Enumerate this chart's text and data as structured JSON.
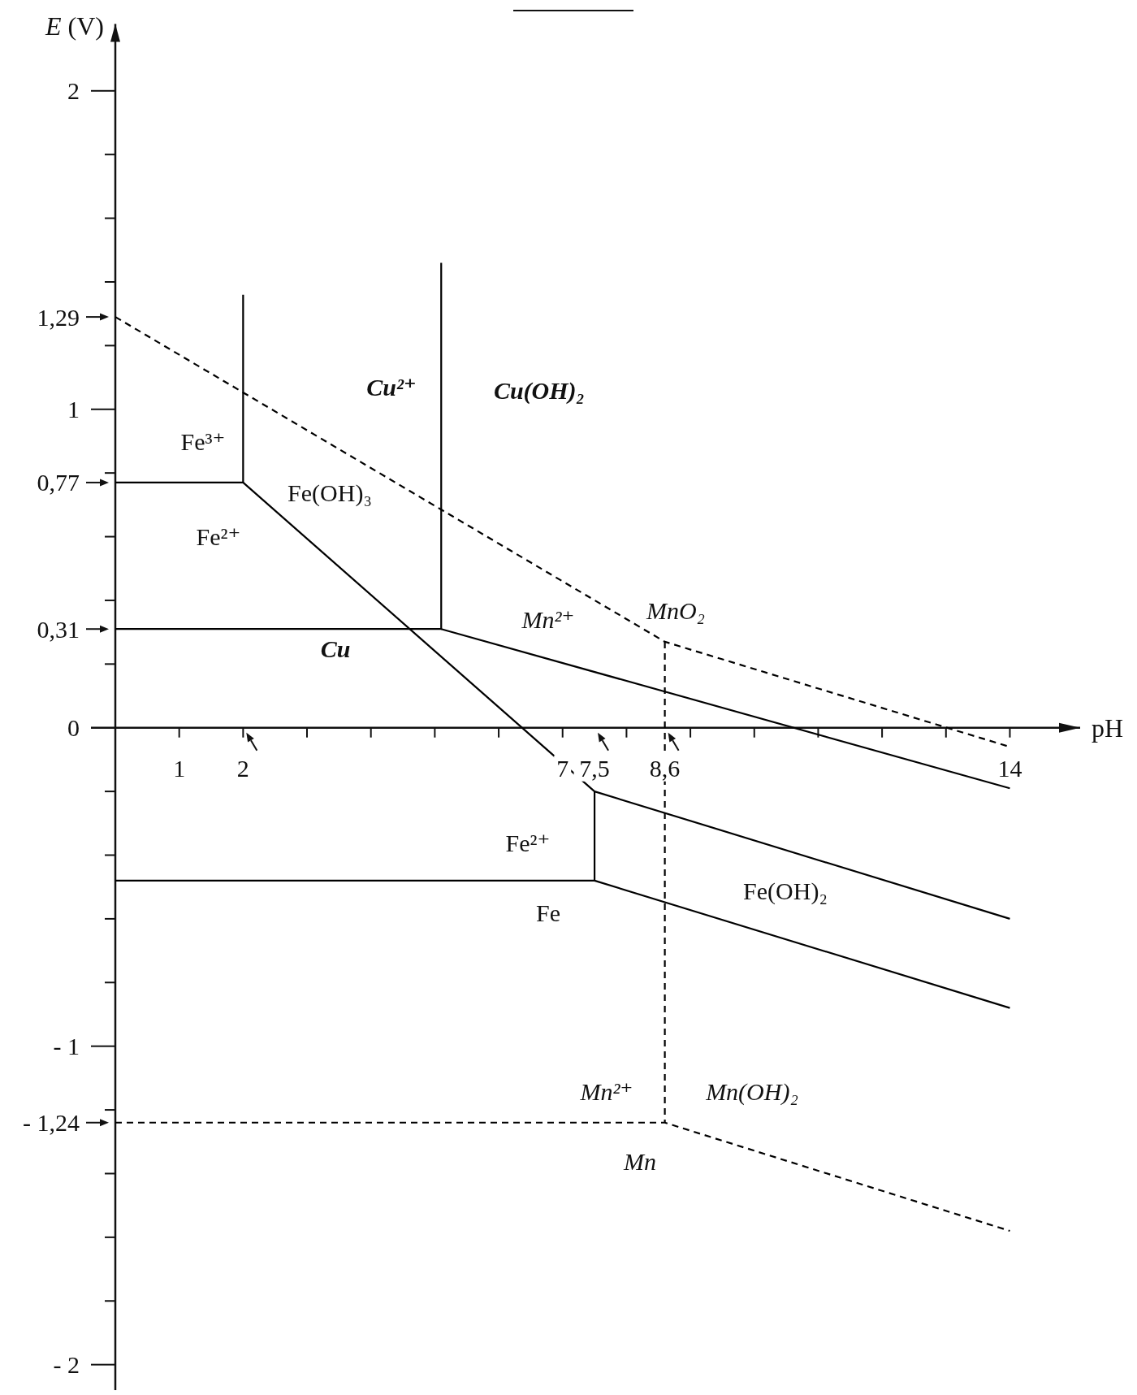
{
  "chart_data": {
    "type": "line",
    "xlabel": "pH",
    "ylabel": "E (V)",
    "line_style": "solid",
    "xlim": [
      0,
      15.1
    ],
    "ylim": [
      -2.08,
      2.21
    ],
    "xticks": [
      1,
      2,
      {
        "value": 3,
        "label": null
      },
      {
        "value": 4,
        "label": null
      },
      {
        "value": 5,
        "label": null
      },
      {
        "value": 6,
        "label": null
      },
      7,
      {
        "value": 7.5,
        "label": "7,5"
      },
      {
        "value": 8,
        "label": null
      },
      {
        "value": 8.6,
        "label": "8,6"
      },
      {
        "value": 9,
        "label": null
      },
      {
        "value": 10,
        "label": null
      },
      {
        "value": 11,
        "label": null
      },
      {
        "value": 12,
        "label": null
      },
      {
        "value": 13,
        "label": null
      },
      14
    ],
    "yticks": [
      {
        "value": -2,
        "label": "- 2"
      },
      {
        "value": -1.8,
        "label": null
      },
      {
        "value": -1.6,
        "label": null
      },
      {
        "value": -1.4,
        "label": null
      },
      {
        "value": -1.24,
        "label": "- 1,24"
      },
      {
        "value": -1.2,
        "label": null
      },
      {
        "value": -1,
        "label": "- 1"
      },
      {
        "value": -0.8,
        "label": null
      },
      {
        "value": -0.6,
        "label": null
      },
      {
        "value": -0.4,
        "label": null
      },
      {
        "value": -0.2,
        "label": null
      },
      0,
      {
        "value": 0.2,
        "label": null
      },
      {
        "value": 0.31,
        "label": "0,31"
      },
      {
        "value": 0.4,
        "label": null
      },
      {
        "value": 0.6,
        "label": null
      },
      {
        "value": 0.77,
        "label": "0,77"
      },
      {
        "value": 0.8,
        "label": null
      },
      1,
      {
        "value": 1.2,
        "label": null
      },
      {
        "value": 1.29,
        "label": "1,29"
      },
      {
        "value": 1.4,
        "label": null
      },
      {
        "value": 1.6,
        "label": null
      },
      {
        "value": 1.8,
        "label": null
      },
      2
    ],
    "series": [
      {
        "color": "#000000",
        "x": [
          0,
          2,
          2
        ],
        "values": [
          0.77,
          0.77,
          1.36
        ]
      },
      {
        "color": "#000000",
        "x": [
          2,
          7.5,
          14
        ],
        "values": [
          0.77,
          -0.2,
          -0.6
        ]
      },
      {
        "color": "#000000",
        "x": [
          7.5,
          7.5
        ],
        "values": [
          -0.2,
          -0.48
        ]
      },
      {
        "color": "#000000",
        "x": [
          0,
          7.5,
          14
        ],
        "values": [
          -0.48,
          -0.48,
          -0.88
        ]
      },
      {
        "color": "#000000",
        "x": [
          0,
          5.1,
          5.1
        ],
        "values": [
          0.31,
          0.31,
          1.46
        ]
      },
      {
        "color": "#000000",
        "x": [
          5.1,
          14
        ],
        "values": [
          0.31,
          -0.19
        ]
      },
      {
        "color": "#000000",
        "line_style": "dashed",
        "x": [
          0,
          8.6,
          14
        ],
        "values": [
          1.29,
          0.27,
          -0.06
        ]
      },
      {
        "color": "#000000",
        "line_style": "dashed",
        "x": [
          8.6,
          8.6
        ],
        "values": [
          0.27,
          -1.24
        ]
      },
      {
        "color": "#000000",
        "line_style": "dashed",
        "x": [
          0,
          8.6,
          14
        ],
        "values": [
          -1.24,
          -1.24,
          -1.58
        ]
      }
    ],
    "annotations": [
      "Fe³⁺",
      "Fe(OH)₃",
      "Fe²⁺",
      "Fe²⁺",
      "Fe",
      "Fe(OH)₂",
      "Cu²⁺",
      "Cu(OH)₂",
      "Cu",
      "Mn²⁺",
      "MnO₂",
      "Mn²⁺",
      "Mn(OH)₂",
      "Mn"
    ]
  }
}
